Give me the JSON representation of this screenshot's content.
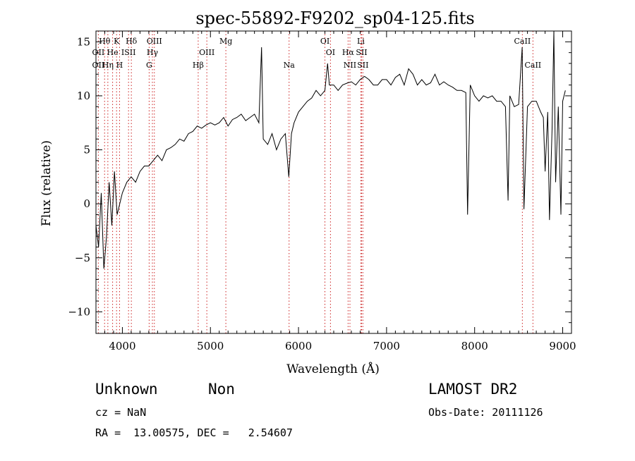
{
  "chart_data": {
    "type": "line",
    "title": "spec-55892-F9202_sp04-125.fits",
    "xlabel": "Wavelength (Å)",
    "ylabel": "Flux (relative)",
    "xlim": [
      3700,
      9100
    ],
    "ylim": [
      -12,
      16
    ],
    "x_ticks": [
      4000,
      5000,
      6000,
      7000,
      8000,
      9000
    ],
    "y_ticks": [
      -10,
      -5,
      0,
      5,
      10,
      15
    ],
    "grid": false,
    "series": [
      {
        "line_color": "#000000",
        "x": [
          3700,
          3730,
          3760,
          3790,
          3820,
          3850,
          3880,
          3910,
          3940,
          3970,
          4000,
          4050,
          4100,
          4150,
          4200,
          4250,
          4300,
          4350,
          4400,
          4450,
          4500,
          4550,
          4600,
          4650,
          4700,
          4750,
          4800,
          4850,
          4900,
          4950,
          5000,
          5050,
          5100,
          5150,
          5200,
          5250,
          5300,
          5350,
          5400,
          5450,
          5500,
          5550,
          5580,
          5600,
          5650,
          5700,
          5750,
          5800,
          5850,
          5890,
          5920,
          5950,
          6000,
          6050,
          6100,
          6150,
          6200,
          6250,
          6300,
          6330,
          6350,
          6400,
          6450,
          6500,
          6560,
          6600,
          6650,
          6700,
          6750,
          6800,
          6850,
          6900,
          6950,
          7000,
          7050,
          7100,
          7150,
          7200,
          7250,
          7300,
          7350,
          7400,
          7450,
          7500,
          7550,
          7600,
          7650,
          7700,
          7750,
          7800,
          7850,
          7900,
          7920,
          7950,
          8000,
          8050,
          8100,
          8150,
          8200,
          8250,
          8300,
          8350,
          8380,
          8400,
          8450,
          8500,
          8540,
          8560,
          8600,
          8650,
          8700,
          8750,
          8780,
          8800,
          8830,
          8850,
          8880,
          8900,
          8920,
          8950,
          8980,
          9000,
          9030
        ],
        "y": [
          -2,
          -4,
          1,
          -6,
          -3,
          2,
          -2,
          3,
          -1,
          0,
          1,
          2,
          2.5,
          2,
          3,
          3.5,
          3.5,
          4,
          4.5,
          4,
          5,
          5.2,
          5.5,
          6,
          5.8,
          6.5,
          6.7,
          7.2,
          7,
          7.3,
          7.5,
          7.3,
          7.5,
          8,
          7.2,
          7.8,
          8,
          8.3,
          7.7,
          8,
          8.3,
          7.5,
          14.5,
          6,
          5.5,
          6.5,
          5,
          6,
          6.5,
          2.5,
          6.5,
          7.5,
          8.5,
          9,
          9.5,
          9.8,
          10.5,
          10,
          10.5,
          13,
          11,
          11,
          10.5,
          11,
          11.2,
          11.3,
          11,
          11.5,
          11.8,
          11.5,
          11,
          11,
          11.5,
          11.5,
          11,
          11.7,
          12,
          11,
          12.5,
          12,
          11,
          11.5,
          11,
          11.2,
          12,
          11,
          11.3,
          11,
          10.8,
          10.5,
          10.5,
          10.3,
          -1,
          11,
          10,
          9.5,
          10,
          9.8,
          10,
          9.5,
          9.5,
          9,
          0.3,
          10,
          9,
          9.2,
          14.5,
          -0.5,
          9,
          9.5,
          9.5,
          8.5,
          8,
          3,
          8.5,
          -1.5,
          7,
          16,
          2,
          9,
          -1,
          9.5,
          10.5
        ]
      }
    ],
    "line_markers": {
      "color": "#cc2222",
      "lines": [
        {
          "label": "Hθ",
          "x": 3798,
          "row": 1
        },
        {
          "label": "K",
          "x": 3934,
          "row": 1
        },
        {
          "label": "Hδ",
          "x": 4102,
          "row": 1
        },
        {
          "label": "OIII",
          "x": 4363,
          "row": 1
        },
        {
          "label": "Mg",
          "x": 5175,
          "row": 1
        },
        {
          "label": "OI",
          "x": 6300,
          "row": 1
        },
        {
          "label": "Li",
          "x": 6708,
          "row": 1
        },
        {
          "label": "CaII",
          "x": 8542,
          "row": 1
        },
        {
          "label": "OII",
          "x": 3727,
          "row": 2
        },
        {
          "label": "He",
          "x": 3889,
          "row": 2
        },
        {
          "label": "ISII",
          "x": 4070,
          "row": 2
        },
        {
          "label": "Hγ",
          "x": 4341,
          "row": 2
        },
        {
          "label": "OIII",
          "x": 4959,
          "row": 2
        },
        {
          "label": "OI",
          "x": 6363,
          "row": 2
        },
        {
          "label": "Hα",
          "x": 6563,
          "row": 2
        },
        {
          "label": "SII",
          "x": 6716,
          "row": 2
        },
        {
          "label": "OII",
          "x": 3727,
          "row": 3
        },
        {
          "label": "Hη",
          "x": 3835,
          "row": 3
        },
        {
          "label": "H",
          "x": 3968,
          "row": 3
        },
        {
          "label": "G",
          "x": 4304,
          "row": 3
        },
        {
          "label": "Hβ",
          "x": 4861,
          "row": 3
        },
        {
          "label": "Na",
          "x": 5893,
          "row": 3
        },
        {
          "label": "NII",
          "x": 6584,
          "row": 3
        },
        {
          "label": "SII",
          "x": 6731,
          "row": 3
        },
        {
          "label": "CaII",
          "x": 8662,
          "row": 3
        }
      ]
    }
  },
  "info": {
    "object_class": "Unknown",
    "subclass": "Non",
    "survey": "LAMOST DR2",
    "cz": "cz = NaN",
    "obs_date": "Obs-Date: 20111126",
    "coords": "RA =  13.00575, DEC =   2.54607"
  }
}
